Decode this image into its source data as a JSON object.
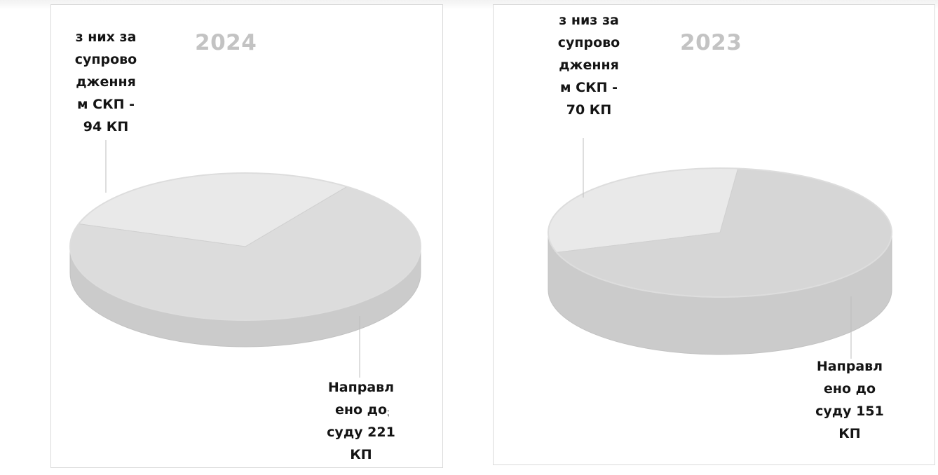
{
  "charts": [
    {
      "year": "2024",
      "label_top": "з них за\nсупрово\nдження\nм СКП -\n94 КП",
      "label_bottom": "Направл\nено до\nсуду 221\nКП"
    },
    {
      "year": "2023",
      "label_top": "з низ за\nсупрово\nдження\nм СКП -\n70 КП",
      "label_bottom": "Направл\nено до\nсуду 151\nКП"
    }
  ],
  "chart_data": [
    {
      "type": "pie",
      "title": "2024",
      "categories": [
        "з них за супроводженням СКП",
        "Направлено до суду"
      ],
      "values": [
        94,
        221
      ],
      "units": "КП",
      "colors": [
        "#e9e9e9",
        "#dcdcdc"
      ],
      "style": "3d"
    },
    {
      "type": "pie",
      "title": "2023",
      "categories": [
        "з низ за супроводженням СКП",
        "Направлено до суду"
      ],
      "values": [
        70,
        151
      ],
      "units": "КП",
      "colors": [
        "#e9e9e9",
        "#d6d6d6"
      ],
      "style": "3d"
    }
  ]
}
